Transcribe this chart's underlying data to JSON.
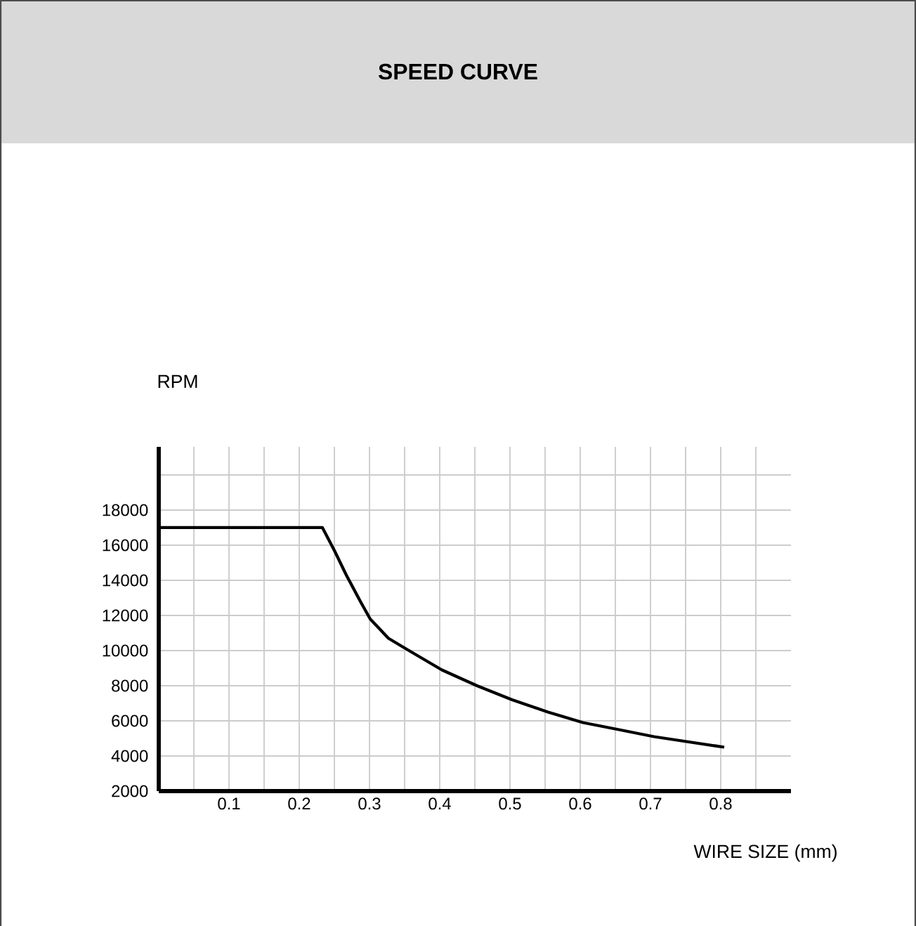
{
  "chart_data": {
    "type": "line",
    "title": "SPEED CURVE",
    "xlabel": "WIRE SIZE (mm)",
    "ylabel": "RPM",
    "xlim": [
      0,
      0.9
    ],
    "ylim": [
      2000,
      21600
    ],
    "xticks": [
      {
        "value": 0.05,
        "label": null
      },
      0.1,
      {
        "value": 0.15,
        "label": null
      },
      0.2,
      {
        "value": 0.25,
        "label": null
      },
      0.3,
      {
        "value": 0.35,
        "label": null
      },
      0.4,
      {
        "value": 0.45,
        "label": null
      },
      0.5,
      {
        "value": 0.55,
        "label": null
      },
      0.6,
      {
        "value": 0.65,
        "label": null
      },
      0.7,
      {
        "value": 0.75,
        "label": null
      },
      0.8,
      {
        "value": 0.85,
        "label": null
      }
    ],
    "yticks": [
      2000,
      4000,
      6000,
      8000,
      10000,
      12000,
      14000,
      16000,
      18000,
      {
        "value": 20000,
        "label": null
      }
    ],
    "grid": true,
    "series": [
      {
        "color": "#000000",
        "x": [
          0,
          0.233,
          0.25,
          0.267,
          0.287,
          0.301,
          0.327,
          0.352,
          0.403,
          0.453,
          0.503,
          0.554,
          0.604,
          0.655,
          0.705,
          0.755,
          0.805
        ],
        "values": [
          17000,
          17000,
          15700,
          14300,
          12800,
          11800,
          10700,
          10100,
          8900,
          8000,
          7200,
          6500,
          5900,
          5500,
          5100,
          4800,
          4500
        ]
      }
    ]
  }
}
